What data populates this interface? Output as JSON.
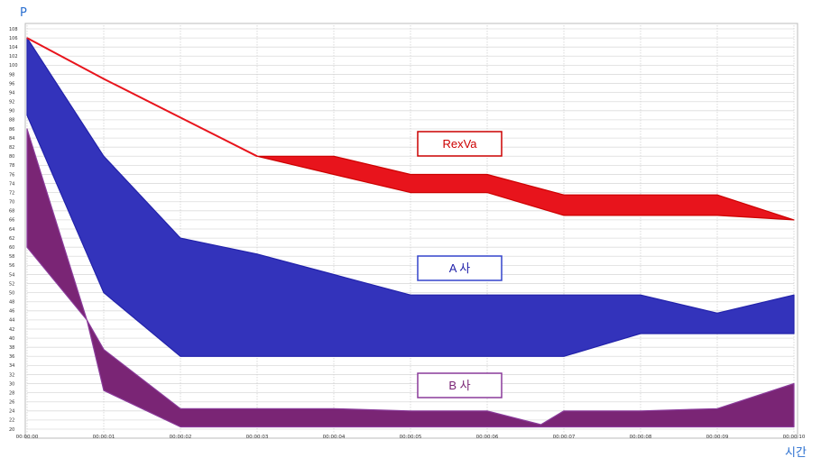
{
  "chart_data": {
    "type": "area",
    "ylabel": "P",
    "xlabel": "시간",
    "ylim": [
      20,
      108
    ],
    "y_ticks": [
      108,
      106,
      104,
      102,
      100,
      98,
      96,
      94,
      92,
      90,
      88,
      86,
      84,
      82,
      80,
      78,
      76,
      74,
      72,
      70,
      68,
      66,
      64,
      62,
      60,
      58,
      56,
      54,
      52,
      50,
      48,
      46,
      44,
      42,
      40,
      38,
      36,
      34,
      32,
      30,
      28,
      26,
      24,
      22,
      20
    ],
    "categories": [
      "00:00:00",
      "00:00:01",
      "00:00:02",
      "00:00:03",
      "00:00:04",
      "00:00:05",
      "00:00:06",
      "00:00:07",
      "00:00:08",
      "00:00:09",
      "00:00:10"
    ],
    "grid": true,
    "series": [
      {
        "name": "RexVa",
        "color": "#e8141c",
        "edge": "#cc0000",
        "upper": [
          [
            0,
            106
          ],
          [
            1,
            97
          ],
          [
            2,
            88.5
          ],
          [
            3,
            80
          ],
          [
            4,
            80
          ],
          [
            5,
            76
          ],
          [
            6,
            76
          ],
          [
            7,
            71.5
          ],
          [
            8,
            71.5
          ],
          [
            9,
            71.5
          ],
          [
            10,
            66
          ]
        ],
        "lower": [
          [
            0,
            106
          ],
          [
            1,
            97
          ],
          [
            2,
            88.5
          ],
          [
            3,
            80
          ],
          [
            4,
            76
          ],
          [
            5,
            72
          ],
          [
            6,
            72
          ],
          [
            7,
            67
          ],
          [
            8,
            67
          ],
          [
            9,
            67
          ],
          [
            10,
            66
          ]
        ]
      },
      {
        "name": "A 사",
        "color": "#3333bb",
        "edge": "#2222aa",
        "upper": [
          [
            0,
            106
          ],
          [
            1,
            80
          ],
          [
            2,
            62
          ],
          [
            3,
            58.5
          ],
          [
            4,
            54
          ],
          [
            5,
            49.5
          ],
          [
            6,
            49.5
          ],
          [
            7,
            49.5
          ],
          [
            8,
            49.5
          ],
          [
            9,
            45.5
          ],
          [
            10,
            49.5
          ]
        ],
        "lower": [
          [
            0,
            89
          ],
          [
            1,
            50
          ],
          [
            2,
            36
          ],
          [
            3,
            36
          ],
          [
            4,
            36
          ],
          [
            5,
            36
          ],
          [
            6,
            36
          ],
          [
            7,
            36
          ],
          [
            8,
            41
          ],
          [
            9,
            41
          ],
          [
            10,
            41
          ]
        ]
      },
      {
        "name": "B 사",
        "color": "#7a2575",
        "edge": "#8a3a9a",
        "upper": [
          [
            0,
            86
          ],
          [
            0.78,
            44
          ],
          [
            1,
            37.5
          ],
          [
            2,
            24.5
          ],
          [
            3,
            24.5
          ],
          [
            4,
            24.5
          ],
          [
            5,
            24
          ],
          [
            6,
            24
          ],
          [
            6.7,
            21
          ],
          [
            7,
            24
          ],
          [
            8,
            24
          ],
          [
            9,
            24.5
          ],
          [
            10,
            30
          ]
        ],
        "lower": [
          [
            0,
            60
          ],
          [
            0.78,
            44
          ],
          [
            1,
            28.5
          ],
          [
            2,
            20.5
          ],
          [
            3,
            20.5
          ],
          [
            4,
            20.5
          ],
          [
            5,
            20.5
          ],
          [
            6,
            20.5
          ],
          [
            7,
            20.5
          ],
          [
            8,
            20.5
          ],
          [
            9,
            20.5
          ],
          [
            10,
            20.5
          ]
        ]
      }
    ],
    "legend": [
      {
        "label": "RexVa",
        "color": "#e8141c",
        "text_color": "#cc0000",
        "border": "#cc0000",
        "position": "upper-center"
      },
      {
        "label": "A  사",
        "color": "#3333bb",
        "text_color": "#2222aa",
        "border": "#3344cc",
        "position": "middle-center"
      },
      {
        "label": "B  사",
        "color": "#7a2575",
        "text_color": "#7a2575",
        "border": "#8a3a9a",
        "position": "lower-center"
      }
    ]
  }
}
